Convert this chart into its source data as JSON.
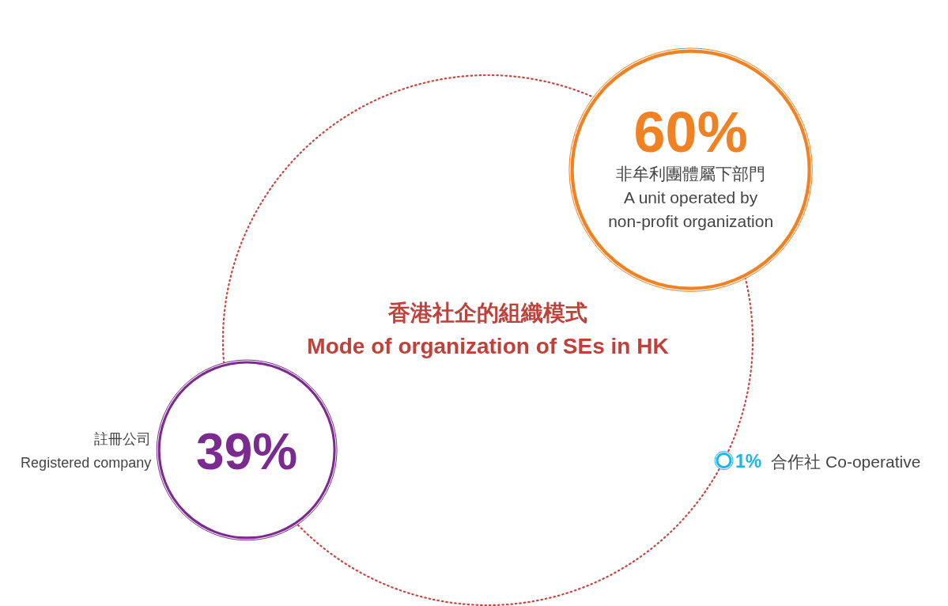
{
  "chart_data": {
    "type": "other",
    "title": "香港社企的組織模式",
    "subtitle": "Mode of organization of SEs in HK",
    "categories": [
      "非牟利團體屬下部門\nA unit operated by\nnon-profit organization",
      "註冊公司\nRegistered company",
      "合作社 Co-operative"
    ],
    "values": [
      60,
      39,
      1
    ],
    "value_labels": [
      "60%",
      "39%",
      "1%"
    ],
    "colors": [
      "#f08224",
      "#7b2b8f",
      "#1bb5e8"
    ]
  }
}
